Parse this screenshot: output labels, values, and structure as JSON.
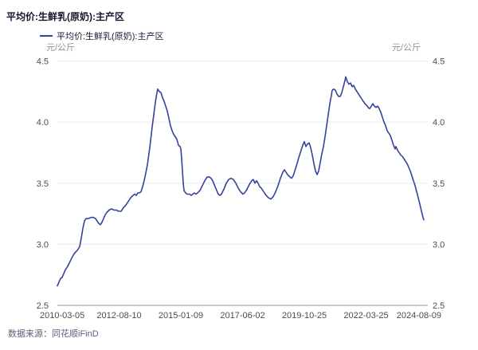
{
  "header": {
    "title": "平均价:生鲜乳(原奶):主产区"
  },
  "legend": {
    "label": "平均价:生鲜乳(原奶):主产区"
  },
  "footer": {
    "source": "数据来源：同花顺iFinD"
  },
  "colors": {
    "line": "#34439b",
    "grid": "#e9eaf2",
    "axis": "#b5bac8",
    "tick_text": "#4c4c58",
    "unit_text": "#8f919f",
    "title_text": "#15152e",
    "legend_text": "#1d1d38",
    "footer_text": "#5a5e7d"
  },
  "chart_data": {
    "type": "line",
    "title": "平均价:生鲜乳(原奶):主产区",
    "unit_left": "元/公斤",
    "unit_right": "元/公斤",
    "ylabel": "元/公斤",
    "xlabel": "",
    "ylim": [
      2.5,
      4.5
    ],
    "y_ticks": [
      2.5,
      3.0,
      3.5,
      4.0,
      4.5
    ],
    "x_tick_labels": [
      "2010-03-05",
      "2012-08-10",
      "2015-01-09",
      "2017-06-02",
      "2019-10-25",
      "2022-03-25",
      "2024-08-09"
    ],
    "grid": "horizontal-only",
    "legend_position": "top-left",
    "series": [
      {
        "name": "平均价:生鲜乳(原奶):主产区",
        "color": "#34439b",
        "points": [
          [
            0.0,
            2.66
          ],
          [
            0.0043,
            2.69
          ],
          [
            0.0086,
            2.72
          ],
          [
            0.0129,
            2.73
          ],
          [
            0.0172,
            2.76
          ],
          [
            0.0215,
            2.79
          ],
          [
            0.028,
            2.82
          ],
          [
            0.0344,
            2.86
          ],
          [
            0.0409,
            2.9
          ],
          [
            0.0473,
            2.93
          ],
          [
            0.0538,
            2.95
          ],
          [
            0.0602,
            2.98
          ],
          [
            0.0645,
            3.05
          ],
          [
            0.0688,
            3.13
          ],
          [
            0.0731,
            3.19
          ],
          [
            0.0774,
            3.21
          ],
          [
            0.0839,
            3.21
          ],
          [
            0.0903,
            3.22
          ],
          [
            0.0968,
            3.22
          ],
          [
            0.1032,
            3.21
          ],
          [
            0.1075,
            3.19
          ],
          [
            0.1118,
            3.17
          ],
          [
            0.1161,
            3.16
          ],
          [
            0.1204,
            3.18
          ],
          [
            0.1247,
            3.21
          ],
          [
            0.129,
            3.24
          ],
          [
            0.1333,
            3.26
          ],
          [
            0.1398,
            3.28
          ],
          [
            0.1462,
            3.29
          ],
          [
            0.1527,
            3.28
          ],
          [
            0.1591,
            3.28
          ],
          [
            0.1656,
            3.27
          ],
          [
            0.172,
            3.27
          ],
          [
            0.1785,
            3.3
          ],
          [
            0.1849,
            3.32
          ],
          [
            0.1914,
            3.35
          ],
          [
            0.1978,
            3.38
          ],
          [
            0.2043,
            3.4
          ],
          [
            0.2086,
            3.41
          ],
          [
            0.2129,
            3.4
          ],
          [
            0.2172,
            3.42
          ],
          [
            0.2215,
            3.42
          ],
          [
            0.2258,
            3.43
          ],
          [
            0.2301,
            3.47
          ],
          [
            0.2366,
            3.55
          ],
          [
            0.243,
            3.65
          ],
          [
            0.2495,
            3.79
          ],
          [
            0.2559,
            3.96
          ],
          [
            0.2602,
            4.06
          ],
          [
            0.2645,
            4.16
          ],
          [
            0.2688,
            4.24
          ],
          [
            0.271,
            4.27
          ],
          [
            0.2753,
            4.25
          ],
          [
            0.2796,
            4.24
          ],
          [
            0.2839,
            4.2
          ],
          [
            0.2882,
            4.17
          ],
          [
            0.2925,
            4.13
          ],
          [
            0.2968,
            4.09
          ],
          [
            0.3011,
            4.03
          ],
          [
            0.3054,
            3.97
          ],
          [
            0.3097,
            3.93
          ],
          [
            0.314,
            3.9
          ],
          [
            0.3183,
            3.88
          ],
          [
            0.3226,
            3.86
          ],
          [
            0.3269,
            3.81
          ],
          [
            0.3312,
            3.8
          ],
          [
            0.3333,
            3.78
          ],
          [
            0.3355,
            3.7
          ],
          [
            0.3376,
            3.6
          ],
          [
            0.3398,
            3.5
          ],
          [
            0.3419,
            3.44
          ],
          [
            0.3462,
            3.42
          ],
          [
            0.3505,
            3.41
          ],
          [
            0.357,
            3.41
          ],
          [
            0.3613,
            3.4
          ],
          [
            0.3656,
            3.41
          ],
          [
            0.3699,
            3.42
          ],
          [
            0.3742,
            3.41
          ],
          [
            0.3785,
            3.42
          ],
          [
            0.3849,
            3.44
          ],
          [
            0.3914,
            3.48
          ],
          [
            0.3978,
            3.52
          ],
          [
            0.4043,
            3.55
          ],
          [
            0.4108,
            3.55
          ],
          [
            0.4151,
            3.54
          ],
          [
            0.4194,
            3.52
          ],
          [
            0.4258,
            3.47
          ],
          [
            0.4301,
            3.44
          ],
          [
            0.4344,
            3.41
          ],
          [
            0.4387,
            3.4
          ],
          [
            0.443,
            3.41
          ],
          [
            0.4495,
            3.45
          ],
          [
            0.4559,
            3.5
          ],
          [
            0.4624,
            3.53
          ],
          [
            0.4688,
            3.54
          ],
          [
            0.4753,
            3.53
          ],
          [
            0.4817,
            3.5
          ],
          [
            0.4882,
            3.46
          ],
          [
            0.4946,
            3.43
          ],
          [
            0.5011,
            3.41
          ],
          [
            0.5054,
            3.42
          ],
          [
            0.5118,
            3.45
          ],
          [
            0.5183,
            3.49
          ],
          [
            0.5247,
            3.52
          ],
          [
            0.529,
            3.53
          ],
          [
            0.5333,
            3.5
          ],
          [
            0.5376,
            3.52
          ],
          [
            0.5419,
            3.5
          ],
          [
            0.5462,
            3.47
          ],
          [
            0.5505,
            3.46
          ],
          [
            0.557,
            3.43
          ],
          [
            0.5634,
            3.4
          ],
          [
            0.5699,
            3.38
          ],
          [
            0.5763,
            3.37
          ],
          [
            0.5828,
            3.39
          ],
          [
            0.5892,
            3.43
          ],
          [
            0.5957,
            3.48
          ],
          [
            0.6022,
            3.54
          ],
          [
            0.6086,
            3.59
          ],
          [
            0.6129,
            3.61
          ],
          [
            0.6172,
            3.59
          ],
          [
            0.6215,
            3.57
          ],
          [
            0.628,
            3.55
          ],
          [
            0.6323,
            3.54
          ],
          [
            0.6366,
            3.56
          ],
          [
            0.6409,
            3.6
          ],
          [
            0.6452,
            3.64
          ],
          [
            0.6516,
            3.71
          ],
          [
            0.6581,
            3.77
          ],
          [
            0.6624,
            3.81
          ],
          [
            0.6667,
            3.84
          ],
          [
            0.671,
            3.8
          ],
          [
            0.6753,
            3.82
          ],
          [
            0.6796,
            3.83
          ],
          [
            0.6839,
            3.79
          ],
          [
            0.6882,
            3.73
          ],
          [
            0.6925,
            3.66
          ],
          [
            0.6968,
            3.6
          ],
          [
            0.7011,
            3.57
          ],
          [
            0.7054,
            3.6
          ],
          [
            0.7097,
            3.67
          ],
          [
            0.714,
            3.74
          ],
          [
            0.7183,
            3.8
          ],
          [
            0.7226,
            3.88
          ],
          [
            0.7269,
            3.97
          ],
          [
            0.7312,
            4.06
          ],
          [
            0.7355,
            4.15
          ],
          [
            0.7398,
            4.22
          ],
          [
            0.7419,
            4.26
          ],
          [
            0.7462,
            4.27
          ],
          [
            0.7505,
            4.26
          ],
          [
            0.7548,
            4.23
          ],
          [
            0.7591,
            4.21
          ],
          [
            0.7634,
            4.21
          ],
          [
            0.7677,
            4.24
          ],
          [
            0.772,
            4.29
          ],
          [
            0.7763,
            4.34
          ],
          [
            0.7785,
            4.37
          ],
          [
            0.7828,
            4.33
          ],
          [
            0.7871,
            4.31
          ],
          [
            0.7914,
            4.32
          ],
          [
            0.7957,
            4.29
          ],
          [
            0.8,
            4.3
          ],
          [
            0.8043,
            4.27
          ],
          [
            0.8086,
            4.25
          ],
          [
            0.8129,
            4.23
          ],
          [
            0.8172,
            4.21
          ],
          [
            0.8215,
            4.19
          ],
          [
            0.8258,
            4.17
          ],
          [
            0.8301,
            4.15
          ],
          [
            0.8344,
            4.14
          ],
          [
            0.8387,
            4.12
          ],
          [
            0.843,
            4.11
          ],
          [
            0.8473,
            4.13
          ],
          [
            0.8516,
            4.15
          ],
          [
            0.8559,
            4.13
          ],
          [
            0.8602,
            4.12
          ],
          [
            0.8645,
            4.13
          ],
          [
            0.8688,
            4.11
          ],
          [
            0.8731,
            4.08
          ],
          [
            0.8774,
            4.04
          ],
          [
            0.8817,
            4.0
          ],
          [
            0.886,
            3.97
          ],
          [
            0.8903,
            3.93
          ],
          [
            0.8946,
            3.91
          ],
          [
            0.8989,
            3.89
          ],
          [
            0.9032,
            3.85
          ],
          [
            0.9075,
            3.81
          ],
          [
            0.9118,
            3.78
          ],
          [
            0.914,
            3.8
          ],
          [
            0.9183,
            3.77
          ],
          [
            0.9226,
            3.75
          ],
          [
            0.9269,
            3.73
          ],
          [
            0.9312,
            3.72
          ],
          [
            0.9355,
            3.7
          ],
          [
            0.9398,
            3.68
          ],
          [
            0.9441,
            3.66
          ],
          [
            0.9484,
            3.63
          ],
          [
            0.9527,
            3.6
          ],
          [
            0.957,
            3.56
          ],
          [
            0.9613,
            3.52
          ],
          [
            0.9656,
            3.48
          ],
          [
            0.9699,
            3.43
          ],
          [
            0.9742,
            3.38
          ],
          [
            0.9785,
            3.33
          ],
          [
            0.9828,
            3.27
          ],
          [
            0.9871,
            3.22
          ],
          [
            0.9892,
            3.2
          ]
        ]
      }
    ]
  }
}
